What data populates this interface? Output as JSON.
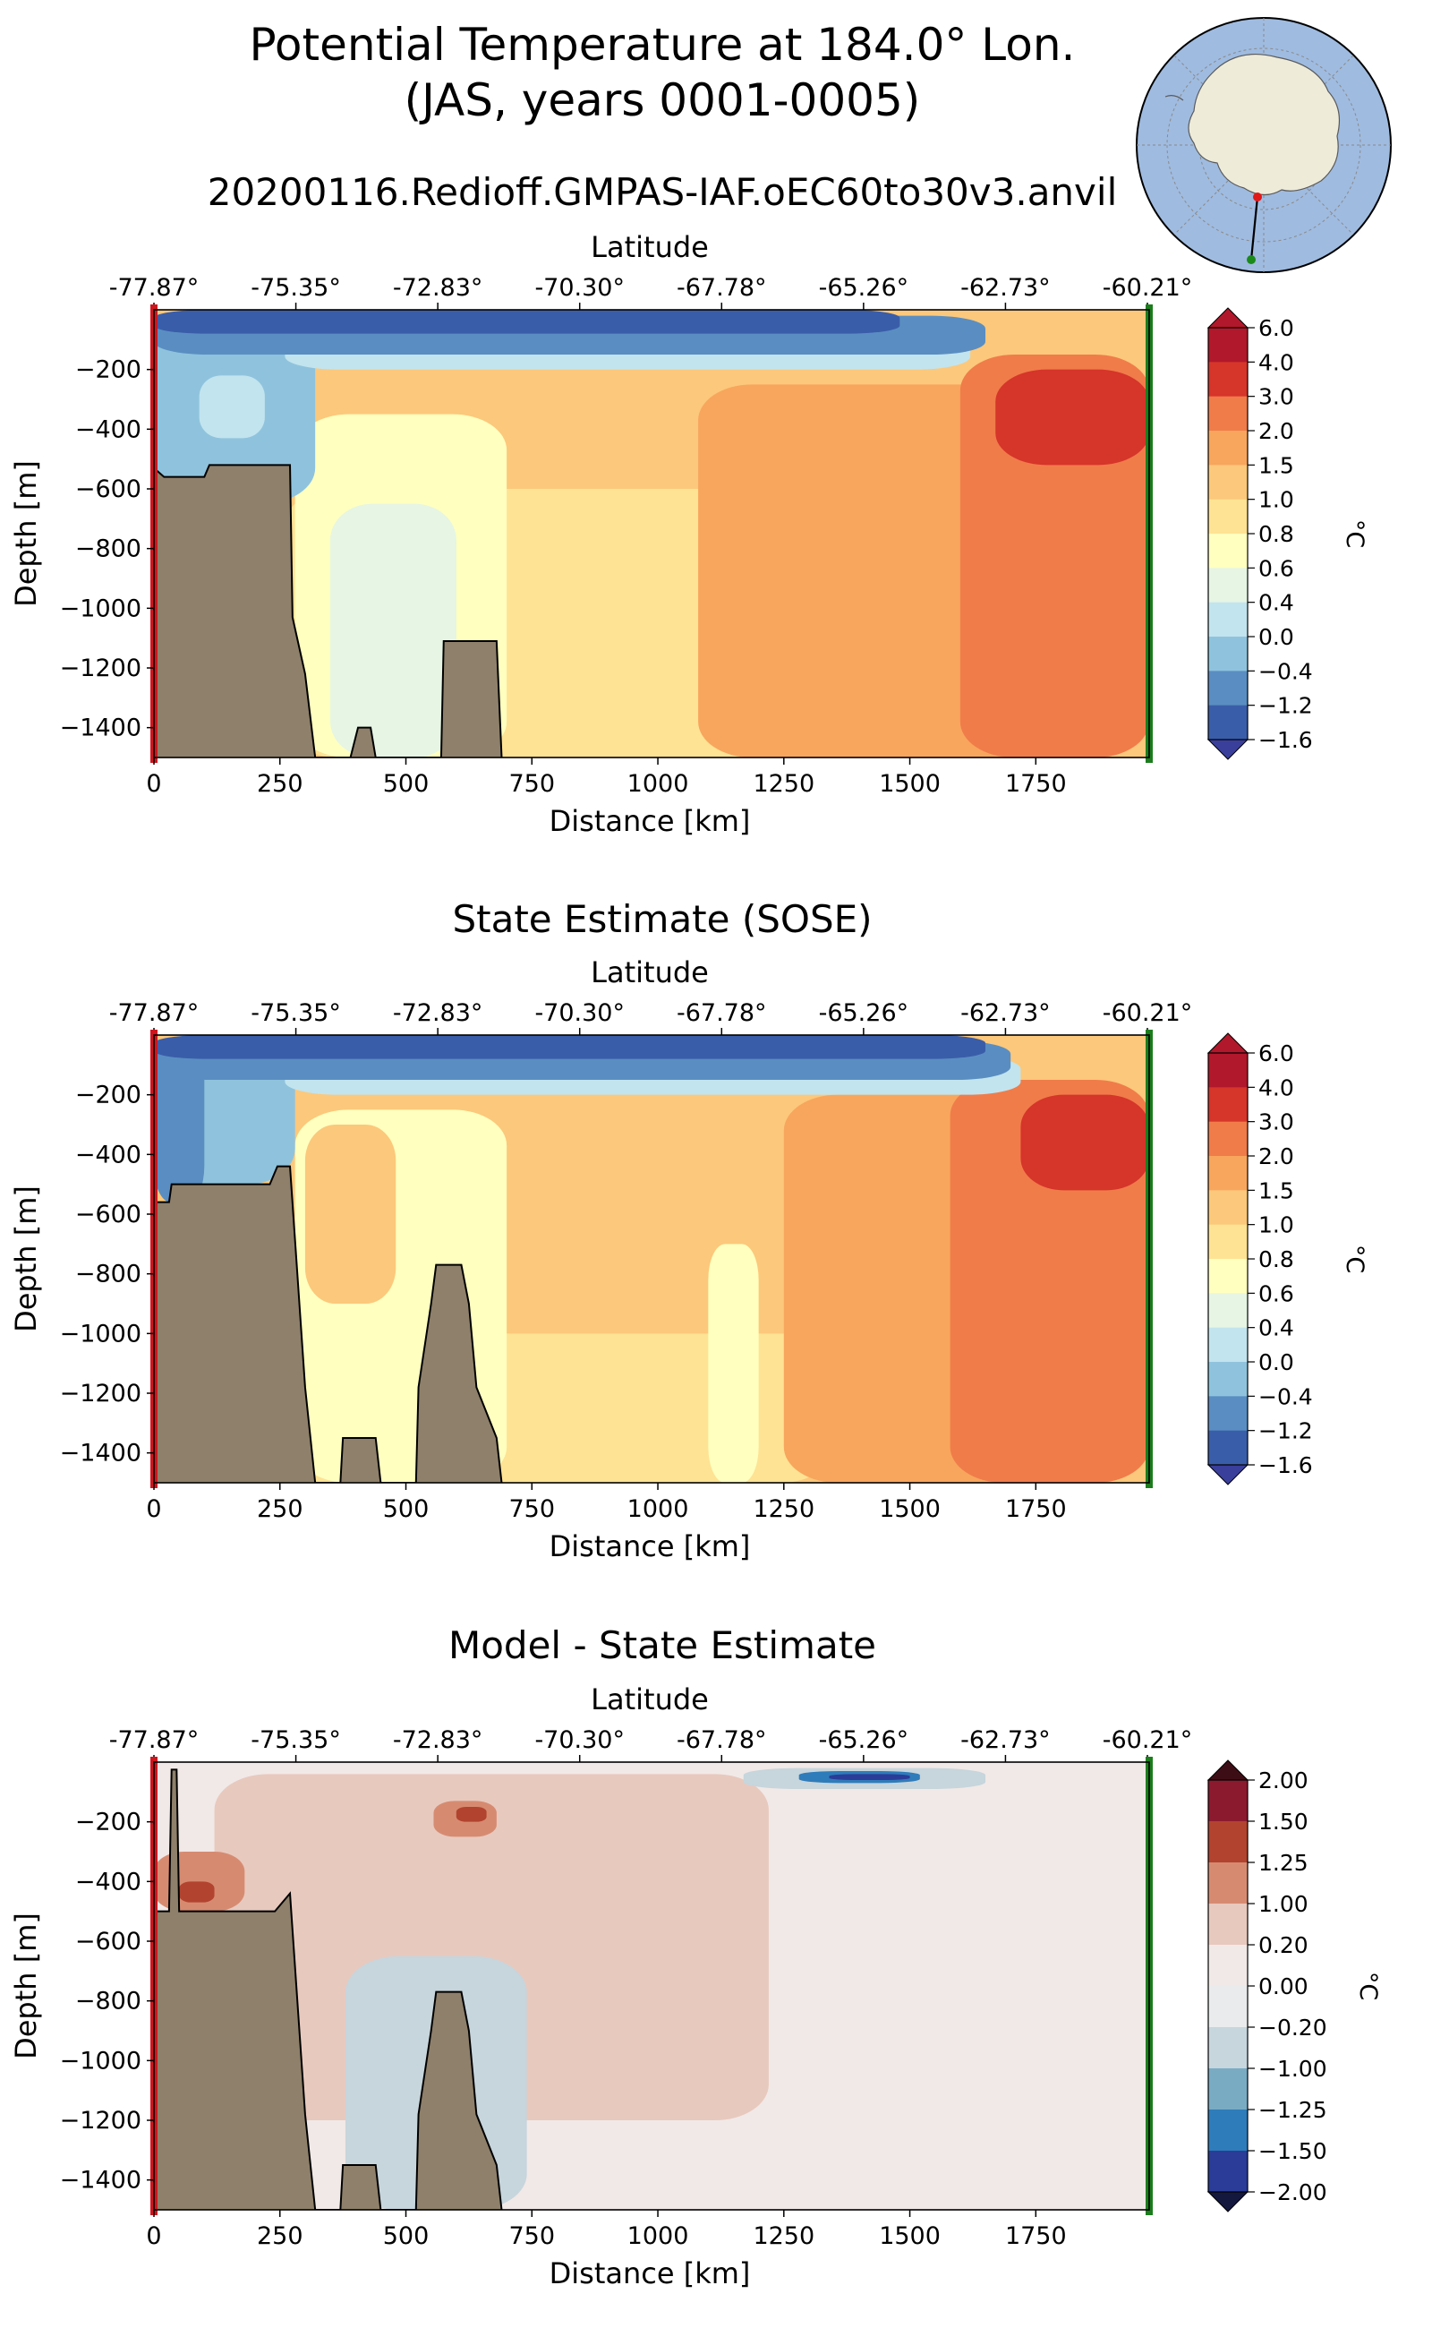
{
  "figure": {
    "title_line1": "Potential Temperature at 184.0° Lon.",
    "title_line2": "(JAS, years 0001-0005)",
    "subtitle": "20200116.Redioff.GMPAS-IAF.oEC60to30v3.anvil",
    "inset_map": "antarctica-polar-map"
  },
  "colors": {
    "land": "#8e806a",
    "left_edge": "#d0161d",
    "right_edge": "#1b7d1b"
  },
  "chart_data": [
    {
      "type": "contour",
      "panel": "model",
      "title": "",
      "top_axis_label": "Latitude",
      "top_ticks": [
        "-77.87°",
        "-75.35°",
        "-72.83°",
        "-70.30°",
        "-67.78°",
        "-65.26°",
        "-62.73°",
        "-60.21°"
      ],
      "xlabel": "Distance [km]",
      "ylabel": "Depth [m]",
      "x_ticks": [
        0,
        250,
        500,
        750,
        1000,
        1250,
        1500,
        1750
      ],
      "y_ticks": [
        -200,
        -400,
        -600,
        -800,
        -1000,
        -1200,
        -1400
      ],
      "xlim": [
        0,
        1975
      ],
      "ylim": [
        -1500,
        0
      ],
      "colorbar_label": "°C",
      "colorbar_ticks": [
        "6.0",
        "4.0",
        "3.0",
        "2.0",
        "1.5",
        "1.0",
        "0.8",
        "0.6",
        "0.4",
        "0.0",
        "−0.4",
        "−1.2",
        "−1.6"
      ],
      "colorbar_colors": [
        "#b2182b",
        "#d6352a",
        "#f07c4a",
        "#f8a65d",
        "#fcc87b",
        "#fee394",
        "#ffffbf",
        "#e6f5e4",
        "#c2e4ee",
        "#8fc3dd",
        "#5a8ec2",
        "#3a5da9"
      ],
      "colorbar_over": "#b2182b",
      "colorbar_under": "#3a3f9c",
      "regions": [
        {
          "d": [
            0,
            1975
          ],
          "z": [
            -1500,
            0
          ],
          "value": 1.25
        },
        {
          "d": [
            260,
            1350
          ],
          "z": [
            -1500,
            -600
          ],
          "value": 0.9
        },
        {
          "d": [
            280,
            700
          ],
          "z": [
            -1500,
            -350
          ],
          "value": 0.7
        },
        {
          "d": [
            350,
            600
          ],
          "z": [
            -1500,
            -650
          ],
          "value": 0.5
        },
        {
          "d": [
            1080,
            1975
          ],
          "z": [
            -1500,
            -250
          ],
          "value": 1.75
        },
        {
          "d": [
            1600,
            1975
          ],
          "z": [
            -1500,
            -150
          ],
          "value": 2.5
        },
        {
          "d": [
            1670,
            1975
          ],
          "z": [
            -520,
            -200
          ],
          "value": 3.5
        },
        {
          "d": [
            0,
            320
          ],
          "z": [
            -650,
            -30
          ],
          "value": -0.3
        },
        {
          "d": [
            90,
            220
          ],
          "z": [
            -430,
            -220
          ],
          "value": 0.2
        },
        {
          "d": [
            260,
            1620
          ],
          "z": [
            -200,
            -70
          ],
          "value": 0.3
        },
        {
          "d": [
            0,
            1650
          ],
          "z": [
            -150,
            -20
          ],
          "value": -0.8
        },
        {
          "d": [
            0,
            1480
          ],
          "z": [
            -80,
            0
          ],
          "value": -1.4
        }
      ],
      "bathymetry": [
        [
          0,
          -530
        ],
        [
          20,
          -560
        ],
        [
          100,
          -560
        ],
        [
          110,
          -520
        ],
        [
          270,
          -520
        ],
        [
          275,
          -1030
        ],
        [
          300,
          -1220
        ],
        [
          320,
          -1500
        ],
        [
          390,
          -1500
        ],
        [
          405,
          -1400
        ],
        [
          430,
          -1400
        ],
        [
          440,
          -1500
        ],
        [
          570,
          -1500
        ],
        [
          575,
          -1110
        ],
        [
          680,
          -1110
        ],
        [
          690,
          -1500
        ]
      ]
    },
    {
      "type": "contour",
      "panel": "sose",
      "title": "State Estimate (SOSE)",
      "top_axis_label": "Latitude",
      "top_ticks": [
        "-77.87°",
        "-75.35°",
        "-72.83°",
        "-70.30°",
        "-67.78°",
        "-65.26°",
        "-62.73°",
        "-60.21°"
      ],
      "xlabel": "Distance [km]",
      "ylabel": "Depth [m]",
      "x_ticks": [
        0,
        250,
        500,
        750,
        1000,
        1250,
        1500,
        1750
      ],
      "y_ticks": [
        -200,
        -400,
        -600,
        -800,
        -1000,
        -1200,
        -1400
      ],
      "xlim": [
        0,
        1975
      ],
      "ylim": [
        -1500,
        0
      ],
      "colorbar_label": "°C",
      "colorbar_ticks": [
        "6.0",
        "4.0",
        "3.0",
        "2.0",
        "1.5",
        "1.0",
        "0.8",
        "0.6",
        "0.4",
        "0.0",
        "−0.4",
        "−1.2",
        "−1.6"
      ],
      "colorbar_colors": [
        "#b2182b",
        "#d6352a",
        "#f07c4a",
        "#f8a65d",
        "#fcc87b",
        "#fee394",
        "#ffffbf",
        "#e6f5e4",
        "#c2e4ee",
        "#8fc3dd",
        "#5a8ec2",
        "#3a5da9"
      ],
      "colorbar_over": "#b2182b",
      "colorbar_under": "#3a3f9c",
      "regions": [
        {
          "d": [
            0,
            1975
          ],
          "z": [
            -1500,
            0
          ],
          "value": 1.25
        },
        {
          "d": [
            0,
            1350
          ],
          "z": [
            -1500,
            -1000
          ],
          "value": 0.9
        },
        {
          "d": [
            280,
            700
          ],
          "z": [
            -1500,
            -250
          ],
          "value": 0.7
        },
        {
          "d": [
            1100,
            1200
          ],
          "z": [
            -1500,
            -700
          ],
          "value": 0.7
        },
        {
          "d": [
            300,
            480
          ],
          "z": [
            -900,
            -300
          ],
          "value": 1.2
        },
        {
          "d": [
            1250,
            1975
          ],
          "z": [
            -1500,
            -200
          ],
          "value": 1.75
        },
        {
          "d": [
            1580,
            1975
          ],
          "z": [
            -1500,
            -150
          ],
          "value": 2.5
        },
        {
          "d": [
            1720,
            1975
          ],
          "z": [
            -520,
            -200
          ],
          "value": 3.5
        },
        {
          "d": [
            0,
            280
          ],
          "z": [
            -500,
            -30
          ],
          "value": -0.3
        },
        {
          "d": [
            0,
            100
          ],
          "z": [
            -560,
            -30
          ],
          "value": -1.0
        },
        {
          "d": [
            260,
            1720
          ],
          "z": [
            -200,
            -70
          ],
          "value": 0.3
        },
        {
          "d": [
            0,
            1700
          ],
          "z": [
            -150,
            -20
          ],
          "value": -0.8
        },
        {
          "d": [
            0,
            1650
          ],
          "z": [
            -80,
            0
          ],
          "value": -1.4
        }
      ],
      "bathymetry": [
        [
          0,
          -560
        ],
        [
          30,
          -560
        ],
        [
          35,
          -500
        ],
        [
          230,
          -500
        ],
        [
          245,
          -440
        ],
        [
          270,
          -440
        ],
        [
          300,
          -1180
        ],
        [
          320,
          -1500
        ],
        [
          370,
          -1500
        ],
        [
          375,
          -1350
        ],
        [
          440,
          -1350
        ],
        [
          450,
          -1500
        ],
        [
          520,
          -1500
        ],
        [
          525,
          -1180
        ],
        [
          550,
          -900
        ],
        [
          560,
          -770
        ],
        [
          610,
          -770
        ],
        [
          625,
          -900
        ],
        [
          640,
          -1180
        ],
        [
          680,
          -1350
        ],
        [
          690,
          -1500
        ]
      ]
    },
    {
      "type": "contour",
      "panel": "difference",
      "title": "Model - State Estimate",
      "top_axis_label": "Latitude",
      "top_ticks": [
        "-77.87°",
        "-75.35°",
        "-72.83°",
        "-70.30°",
        "-67.78°",
        "-65.26°",
        "-62.73°",
        "-60.21°"
      ],
      "xlabel": "Distance [km]",
      "ylabel": "Depth [m]",
      "x_ticks": [
        0,
        250,
        500,
        750,
        1000,
        1250,
        1500,
        1750
      ],
      "y_ticks": [
        -200,
        -400,
        -600,
        -800,
        -1000,
        -1200,
        -1400
      ],
      "xlim": [
        0,
        1975
      ],
      "ylim": [
        -1500,
        0
      ],
      "colorbar_label": "°C",
      "colorbar_ticks": [
        "2.00",
        "1.50",
        "1.25",
        "1.00",
        "0.20",
        "0.00",
        "−0.20",
        "−1.00",
        "−1.25",
        "−1.50",
        "−2.00"
      ],
      "colorbar_colors": [
        "#8c1a2e",
        "#b2432f",
        "#d68b71",
        "#e8c9be",
        "#f1e9e7",
        "#e9ebec",
        "#c7d5dc",
        "#79abc3",
        "#2f7cba",
        "#2a3c98"
      ],
      "colorbar_over": "#3d0d15",
      "colorbar_under": "#14173e",
      "regions": [
        {
          "d": [
            0,
            1975
          ],
          "z": [
            -1500,
            0
          ],
          "value": 0.1
        },
        {
          "d": [
            120,
            1220
          ],
          "z": [
            -1200,
            -40
          ],
          "value": 0.5
        },
        {
          "d": [
            0,
            180
          ],
          "z": [
            -500,
            -300
          ],
          "value": 1.1
        },
        {
          "d": [
            50,
            120
          ],
          "z": [
            -470,
            -400
          ],
          "value": 1.4
        },
        {
          "d": [
            555,
            680
          ],
          "z": [
            -250,
            -130
          ],
          "value": 1.1
        },
        {
          "d": [
            600,
            660
          ],
          "z": [
            -200,
            -150
          ],
          "value": 1.4
        },
        {
          "d": [
            380,
            740
          ],
          "z": [
            -1500,
            -650
          ],
          "value": -0.5
        },
        {
          "d": [
            1170,
            1650
          ],
          "z": [
            -90,
            -20
          ],
          "value": -0.5
        },
        {
          "d": [
            1280,
            1520
          ],
          "z": [
            -70,
            -30
          ],
          "value": -1.3
        },
        {
          "d": [
            1340,
            1500
          ],
          "z": [
            -60,
            -40
          ],
          "value": -1.7
        }
      ],
      "bathymetry": [
        [
          0,
          -500
        ],
        [
          30,
          -500
        ],
        [
          35,
          -25
        ],
        [
          45,
          -25
        ],
        [
          50,
          -500
        ],
        [
          240,
          -500
        ],
        [
          270,
          -440
        ],
        [
          300,
          -1180
        ],
        [
          320,
          -1500
        ],
        [
          370,
          -1500
        ],
        [
          375,
          -1350
        ],
        [
          440,
          -1350
        ],
        [
          450,
          -1500
        ],
        [
          520,
          -1500
        ],
        [
          525,
          -1180
        ],
        [
          550,
          -900
        ],
        [
          560,
          -770
        ],
        [
          610,
          -770
        ],
        [
          625,
          -900
        ],
        [
          640,
          -1180
        ],
        [
          680,
          -1350
        ],
        [
          690,
          -1500
        ]
      ]
    }
  ]
}
